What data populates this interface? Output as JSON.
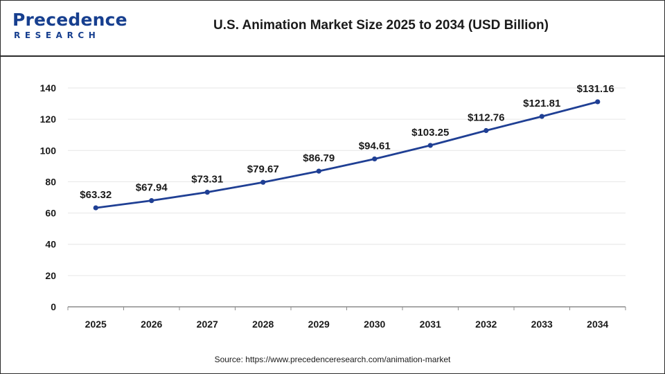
{
  "header": {
    "logo_word": "Precedence",
    "logo_sub": "RESEARCH",
    "title": "U.S. Animation Market Size 2025 to 2034 (USD Billion)"
  },
  "footer": {
    "source": "Source: https://www.precedenceresearch.com/animation-market"
  },
  "colors": {
    "series": "#1f3f94",
    "brand": "#173f8f"
  },
  "chart_data": {
    "type": "line",
    "title": "U.S. Animation Market Size 2025 to 2034 (USD Billion)",
    "categories": [
      "2025",
      "2026",
      "2027",
      "2028",
      "2029",
      "2030",
      "2031",
      "2032",
      "2033",
      "2034"
    ],
    "series": [
      {
        "values": [
          63.32,
          67.94,
          73.31,
          79.67,
          86.79,
          94.61,
          103.25,
          112.76,
          121.81,
          131.16
        ],
        "labels": [
          "$63.32",
          "$67.94",
          "$73.31",
          "$79.67",
          "$86.79",
          "$94.61",
          "$103.25",
          "$112.76",
          "$121.81",
          "$131.16"
        ]
      }
    ],
    "yticks": [
      "0",
      "20",
      "40",
      "60",
      "80",
      "100",
      "120",
      "140"
    ],
    "ylim": [
      0,
      140
    ],
    "grid": true,
    "legend": "none"
  }
}
